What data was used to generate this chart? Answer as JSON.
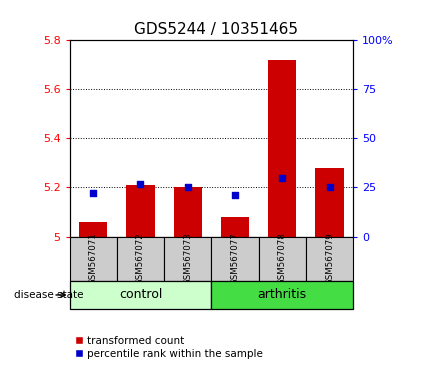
{
  "title": "GDS5244 / 10351465",
  "samples": [
    "GSM567071",
    "GSM567072",
    "GSM567073",
    "GSM567077",
    "GSM567078",
    "GSM567079"
  ],
  "red_values": [
    5.06,
    5.21,
    5.2,
    5.08,
    5.72,
    5.28
  ],
  "blue_pct": [
    22,
    27,
    25,
    21,
    30,
    25
  ],
  "ylim_left": [
    5.0,
    5.8
  ],
  "ylim_right": [
    0,
    100
  ],
  "yticks_left": [
    5.0,
    5.2,
    5.4,
    5.6,
    5.8
  ],
  "ytick_labels_left": [
    "5",
    "5.2",
    "5.4",
    "5.6",
    "5.8"
  ],
  "yticks_right": [
    0,
    25,
    50,
    75,
    100
  ],
  "ytick_labels_right": [
    "0",
    "25",
    "50",
    "75",
    "100%"
  ],
  "groups": [
    {
      "label": "control",
      "indices": [
        0,
        1,
        2
      ],
      "color": "#ccffcc"
    },
    {
      "label": "arthritis",
      "indices": [
        3,
        4,
        5
      ],
      "color": "#44dd44"
    }
  ],
  "bar_color": "#cc0000",
  "square_color": "#0000cc",
  "bar_bottom": 5.0,
  "group_label_prefix": "disease state",
  "legend_red": "transformed count",
  "legend_blue": "percentile rank within the sample",
  "title_fontsize": 11,
  "tick_fontsize": 8,
  "group_fontsize": 9,
  "background_color": "#ffffff",
  "sample_box_color": "#cccccc"
}
